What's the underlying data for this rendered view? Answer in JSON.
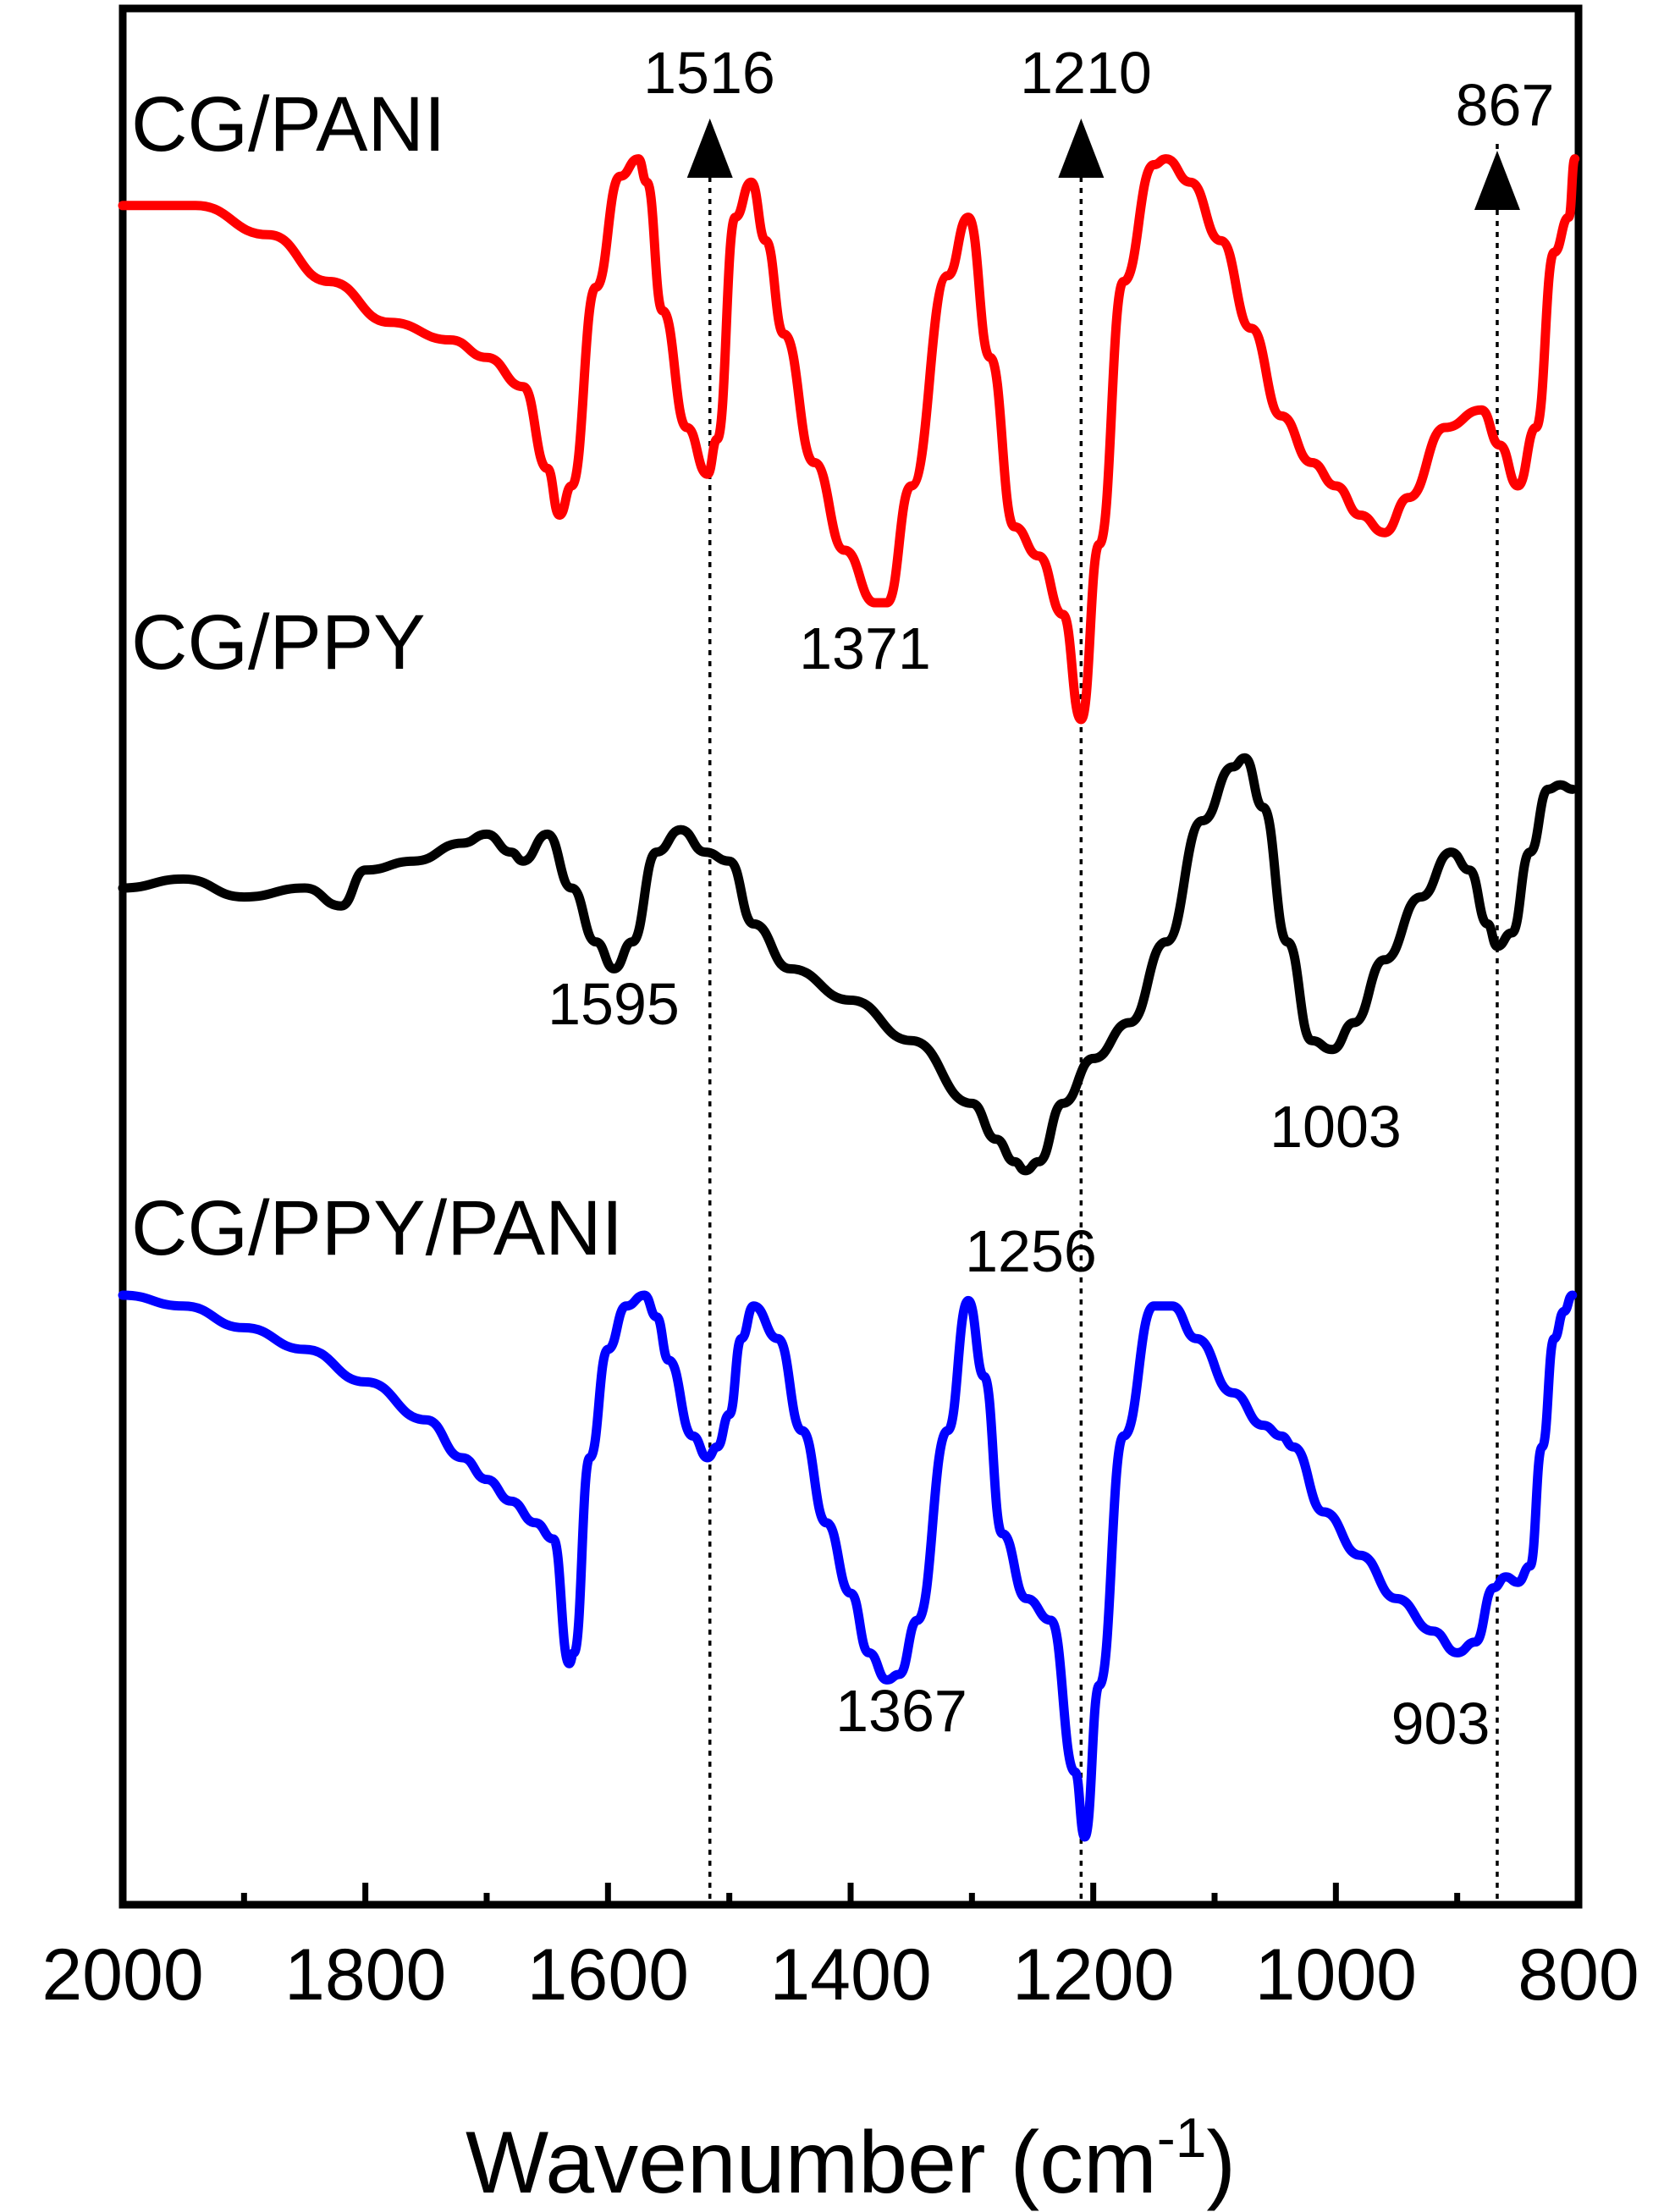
{
  "chart_data": {
    "type": "line",
    "title": "",
    "xlabel": "Wavenumber (cm",
    "xlabel_superscript": "-1",
    "xlabel_close": ")",
    "ylabel": "",
    "xlim": [
      2000,
      800
    ],
    "x_reversed": true,
    "y_ticks_shown": false,
    "grid": false,
    "legend": "none (series labelled directly above each curve)",
    "x_ticks": [
      "2000",
      "1800",
      "1600",
      "1400",
      "1200",
      "1000",
      "800"
    ],
    "series": [
      {
        "name": "CG/PANI",
        "color": "#ff0000",
        "x": [
          2000,
          1940,
          1880,
          1830,
          1780,
          1730,
          1700,
          1670,
          1650,
          1640,
          1630,
          1610,
          1590,
          1575,
          1568,
          1555,
          1535,
          1518,
          1510,
          1495,
          1482,
          1470,
          1455,
          1430,
          1405,
          1380,
          1370,
          1350,
          1320,
          1303,
          1285,
          1265,
          1245,
          1225,
          1210,
          1195,
          1175,
          1150,
          1140,
          1120,
          1095,
          1070,
          1045,
          1020,
          1000,
          980,
          960,
          940,
          910,
          880,
          865,
          850,
          835,
          820,
          808,
          803
        ],
        "y": [
          0.88,
          0.88,
          0.83,
          0.75,
          0.68,
          0.65,
          0.62,
          0.57,
          0.43,
          0.35,
          0.4,
          0.74,
          0.93,
          0.96,
          0.92,
          0.7,
          0.5,
          0.42,
          0.48,
          0.86,
          0.92,
          0.82,
          0.66,
          0.44,
          0.29,
          0.2,
          0.2,
          0.4,
          0.76,
          0.86,
          0.62,
          0.33,
          0.28,
          0.18,
          0.0,
          0.3,
          0.75,
          0.95,
          0.96,
          0.92,
          0.82,
          0.67,
          0.52,
          0.44,
          0.4,
          0.35,
          0.32,
          0.38,
          0.5,
          0.53,
          0.47,
          0.4,
          0.5,
          0.8,
          0.86,
          0.96
        ]
      },
      {
        "name": "CG/PPY",
        "color": "#000000",
        "x": [
          2000,
          1950,
          1900,
          1850,
          1820,
          1800,
          1760,
          1720,
          1700,
          1680,
          1670,
          1650,
          1630,
          1610,
          1595,
          1580,
          1560,
          1540,
          1520,
          1500,
          1480,
          1450,
          1400,
          1350,
          1300,
          1280,
          1265,
          1256,
          1245,
          1225,
          1200,
          1170,
          1140,
          1110,
          1085,
          1075,
          1060,
          1040,
          1020,
          1003,
          985,
          960,
          930,
          905,
          890,
          875,
          867,
          855,
          840,
          825,
          815,
          805
        ],
        "y": [
          0.7,
          0.72,
          0.68,
          0.7,
          0.66,
          0.74,
          0.76,
          0.8,
          0.82,
          0.78,
          0.76,
          0.82,
          0.7,
          0.58,
          0.52,
          0.58,
          0.78,
          0.83,
          0.78,
          0.76,
          0.62,
          0.52,
          0.45,
          0.36,
          0.22,
          0.14,
          0.09,
          0.07,
          0.09,
          0.22,
          0.32,
          0.4,
          0.58,
          0.85,
          0.97,
          0.99,
          0.88,
          0.58,
          0.36,
          0.34,
          0.4,
          0.54,
          0.68,
          0.78,
          0.74,
          0.62,
          0.57,
          0.6,
          0.78,
          0.92,
          0.93,
          0.92
        ]
      },
      {
        "name": "CG/PPY/PANI",
        "color": "#0000ff",
        "x": [
          2000,
          1950,
          1900,
          1850,
          1800,
          1750,
          1720,
          1700,
          1680,
          1660,
          1645,
          1632,
          1628,
          1615,
          1600,
          1585,
          1570,
          1560,
          1550,
          1530,
          1518,
          1510,
          1500,
          1490,
          1480,
          1460,
          1440,
          1420,
          1400,
          1385,
          1370,
          1360,
          1345,
          1320,
          1303,
          1290,
          1275,
          1255,
          1235,
          1215,
          1207,
          1195,
          1175,
          1150,
          1135,
          1115,
          1085,
          1060,
          1045,
          1035,
          1010,
          980,
          950,
          920,
          900,
          885,
          870,
          860,
          850,
          840,
          830,
          820,
          812,
          805
        ],
        "y": [
          1.0,
          0.98,
          0.94,
          0.9,
          0.84,
          0.77,
          0.7,
          0.66,
          0.62,
          0.58,
          0.55,
          0.32,
          0.34,
          0.7,
          0.9,
          0.98,
          1.0,
          0.96,
          0.88,
          0.74,
          0.7,
          0.72,
          0.78,
          0.92,
          0.98,
          0.92,
          0.75,
          0.58,
          0.45,
          0.34,
          0.29,
          0.3,
          0.4,
          0.75,
          0.99,
          0.85,
          0.56,
          0.44,
          0.4,
          0.12,
          0.0,
          0.28,
          0.74,
          0.98,
          0.98,
          0.92,
          0.82,
          0.76,
          0.74,
          0.72,
          0.6,
          0.52,
          0.44,
          0.38,
          0.34,
          0.36,
          0.46,
          0.48,
          0.47,
          0.5,
          0.72,
          0.92,
          0.97,
          1.0
        ]
      }
    ],
    "series_labels": [
      "CG/PANI",
      "CG/PPY",
      "CG/PPY/PANI"
    ],
    "reference_lines": [
      1516,
      1210,
      867
    ],
    "marker_labels": [
      "1516",
      "1210",
      "867"
    ],
    "peak_labels": {
      "pani": [
        "1371"
      ],
      "ppy": [
        "1595",
        "1256",
        "1003"
      ],
      "ppy_pani": [
        "1367",
        "903"
      ]
    }
  }
}
